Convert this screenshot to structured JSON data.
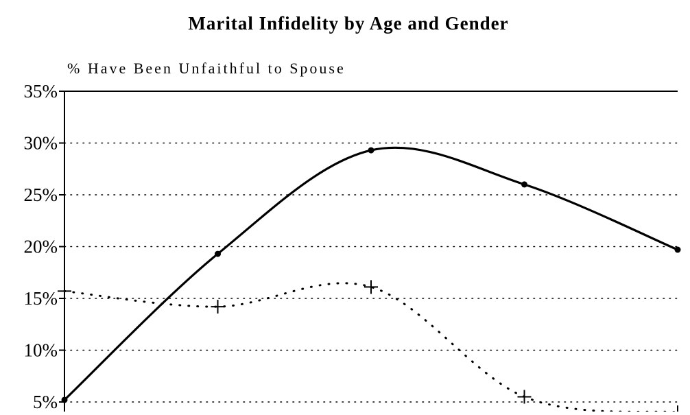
{
  "chart_data": {
    "type": "line",
    "title": "Marital Infidelity by Age and Gender",
    "xlabel": "",
    "ylabel": "% Have Been Unfaithful to Spouse",
    "ylim": [
      0,
      35
    ],
    "yticks": [
      5,
      10,
      15,
      20,
      25,
      30,
      35
    ],
    "ytick_labels": [
      "5%",
      "10%",
      "15%",
      "20%",
      "25%",
      "30%",
      "35%"
    ],
    "x": [
      0,
      1,
      2,
      3,
      4
    ],
    "grid": true,
    "legend": "none",
    "series": [
      {
        "style": "solid",
        "marker": "dot",
        "color": "#000000",
        "values": [
          5.2,
          19.3,
          29.3,
          26.0,
          19.7
        ]
      },
      {
        "style": "dotted",
        "marker": "plus",
        "color": "#000000",
        "values": [
          15.7,
          14.2,
          16.1,
          5.5,
          4.0
        ]
      }
    ]
  }
}
